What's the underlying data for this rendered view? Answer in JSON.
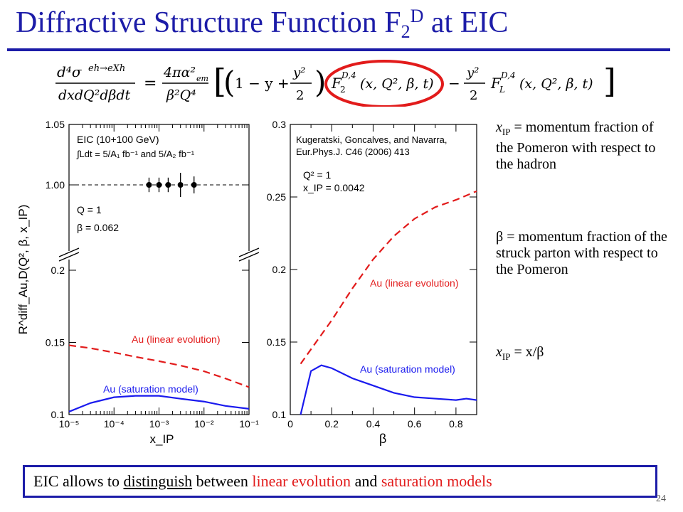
{
  "title": {
    "main": "Diffractive Structure Function F",
    "sub": "2",
    "sup": "D",
    "tail": " at EIC"
  },
  "formula": {
    "lhs_num": "d⁴σ eh→eXh",
    "lhs_den": "dxdQ²dβdt",
    "rhs": "4πα²em / β²Q⁴ [ (1 − y + y²/2) F2 D,4(x,Q²,β,t) − y²/2 FL D,4(x,Q²,β,t) ]"
  },
  "definitions": [
    {
      "sym": "x",
      "sub": "IP",
      "text": " = momentum fraction of the Pomeron with respect to the hadron"
    },
    {
      "sym": "β",
      "sub": "",
      "text": " = momentum fraction of the struck parton with respect to the Pomeron"
    },
    {
      "sym": "x",
      "sub": "IP",
      "text": " = x/β"
    }
  ],
  "bottom": {
    "t1": "EIC allows to ",
    "t2": "distinguish",
    "t3": " between ",
    "t4": "linear evolution",
    "t5": " and ",
    "t6": "saturation models"
  },
  "page_number": "24",
  "colors": {
    "title": "#1c1ca8",
    "linear": "#e21b1b",
    "saturation": "#1a1aee",
    "circle": "#e21b1b"
  },
  "chart_data": [
    {
      "type": "line",
      "xscale": "log",
      "xlim": [
        1e-05,
        0.1
      ],
      "ylim": [
        0.1,
        1.05
      ],
      "axis_break": true,
      "xlabel": "x_IP",
      "ylabel": "R^diff_Au,D(Q², β, x_IP)",
      "xticks": [
        "10⁻⁵",
        "10⁻⁴",
        "10⁻³",
        "10⁻²",
        "10⁻¹"
      ],
      "yticks": [
        "0.1",
        "0.15",
        "0.2",
        "1.00",
        "1.05"
      ],
      "annotations": [
        "EIC (10+100 GeV)",
        "∫Ldt = 5/A₁ fb⁻¹ and 5/A₂ fb⁻¹",
        "Q = 1",
        "β = 0.062"
      ],
      "reference_line": 1.0,
      "points": {
        "x": [
          0.0006,
          0.001,
          0.0016,
          0.003,
          0.006
        ],
        "y": [
          1.0,
          1.0,
          1.0,
          1.0,
          1.0
        ],
        "err": [
          0.006,
          0.006,
          0.006,
          0.01,
          0.007
        ]
      },
      "series": [
        {
          "name": "Au (linear evolution)",
          "style": "dashed",
          "x": [
            1e-05,
            3e-05,
            0.0001,
            0.0003,
            0.001,
            0.003,
            0.01,
            0.03,
            0.1
          ],
          "y": [
            0.148,
            0.146,
            0.143,
            0.14,
            0.137,
            0.134,
            0.13,
            0.125,
            0.119
          ]
        },
        {
          "name": "Au (saturation model)",
          "style": "solid",
          "x": [
            1e-05,
            3e-05,
            0.0001,
            0.0003,
            0.001,
            0.003,
            0.01,
            0.03,
            0.1
          ],
          "y": [
            0.102,
            0.108,
            0.112,
            0.113,
            0.113,
            0.111,
            0.109,
            0.106,
            0.104
          ]
        }
      ]
    },
    {
      "type": "line",
      "xlim": [
        0,
        0.9
      ],
      "ylim": [
        0.1,
        0.3
      ],
      "xlabel": "β",
      "xticks": [
        "0",
        "0.2",
        "0.4",
        "0.6",
        "0.8"
      ],
      "yticks": [
        "0.1",
        "0.15",
        "0.2",
        "0.25",
        "0.3"
      ],
      "annotations": [
        "Kugeratski, Goncalves, and Navarra,",
        "Eur.Phys.J. C46 (2006) 413",
        "Q² = 1",
        "x_IP = 0.0042"
      ],
      "series": [
        {
          "name": "Au (linear evolution)",
          "style": "dashed",
          "x": [
            0.05,
            0.1,
            0.2,
            0.3,
            0.4,
            0.5,
            0.6,
            0.7,
            0.8,
            0.9
          ],
          "y": [
            0.135,
            0.145,
            0.165,
            0.187,
            0.207,
            0.223,
            0.235,
            0.243,
            0.248,
            0.254
          ]
        },
        {
          "name": "Au (saturation model)",
          "style": "solid",
          "x": [
            0.05,
            0.1,
            0.15,
            0.2,
            0.3,
            0.4,
            0.5,
            0.6,
            0.7,
            0.8,
            0.85,
            0.9
          ],
          "y": [
            0.1,
            0.13,
            0.134,
            0.132,
            0.125,
            0.12,
            0.115,
            0.112,
            0.111,
            0.11,
            0.111,
            0.11
          ]
        }
      ]
    }
  ]
}
